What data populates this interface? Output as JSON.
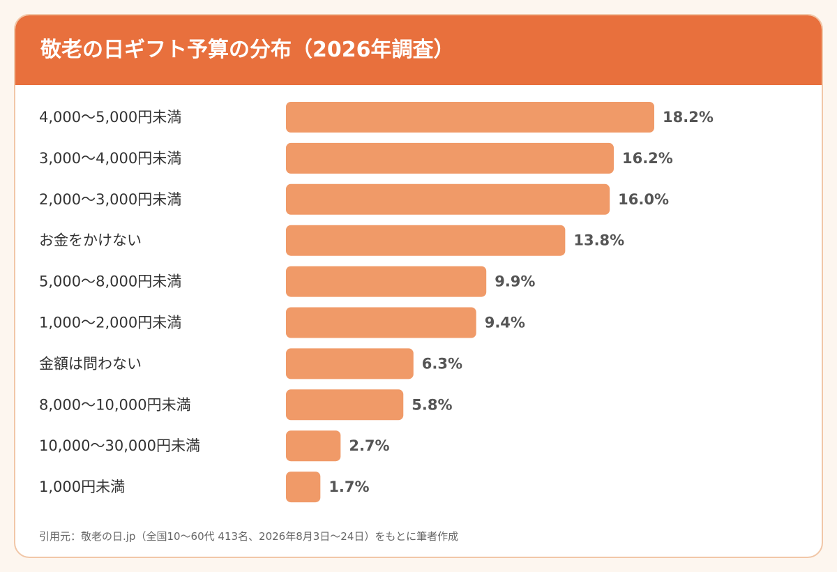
{
  "title": "敬老の日ギフト予算の分布（2026年調査）",
  "footnote": "引用元：敬老の日.jp（全国10〜60代 413名、2026年8月3日〜24日）をもとに筆者作成",
  "colors": {
    "header": "#e8703d",
    "bar": "#f09a68",
    "background": "#fdf6ef",
    "card_border": "#f1c7a8"
  },
  "chart_data": {
    "type": "bar",
    "orientation": "horizontal",
    "title": "敬老の日ギフト予算の分布（2026年調査）",
    "unit": "%",
    "categories": [
      "4,000〜5,000円未満",
      "3,000〜4,000円未満",
      "2,000〜3,000円未満",
      "お金をかけない",
      "5,000〜8,000円未満",
      "1,000〜2,000円未満",
      "金額は問わない",
      "8,000〜10,000円未満",
      "10,000〜30,000円未満",
      "1,000円未満"
    ],
    "values": [
      18.2,
      16.2,
      16.0,
      13.8,
      9.9,
      9.4,
      6.3,
      5.8,
      2.7,
      1.7
    ],
    "value_labels": [
      "18.2%",
      "16.2%",
      "16.0%",
      "13.8%",
      "9.9%",
      "9.4%",
      "6.3%",
      "5.8%",
      "2.7%",
      "1.7%"
    ],
    "grid": false
  }
}
